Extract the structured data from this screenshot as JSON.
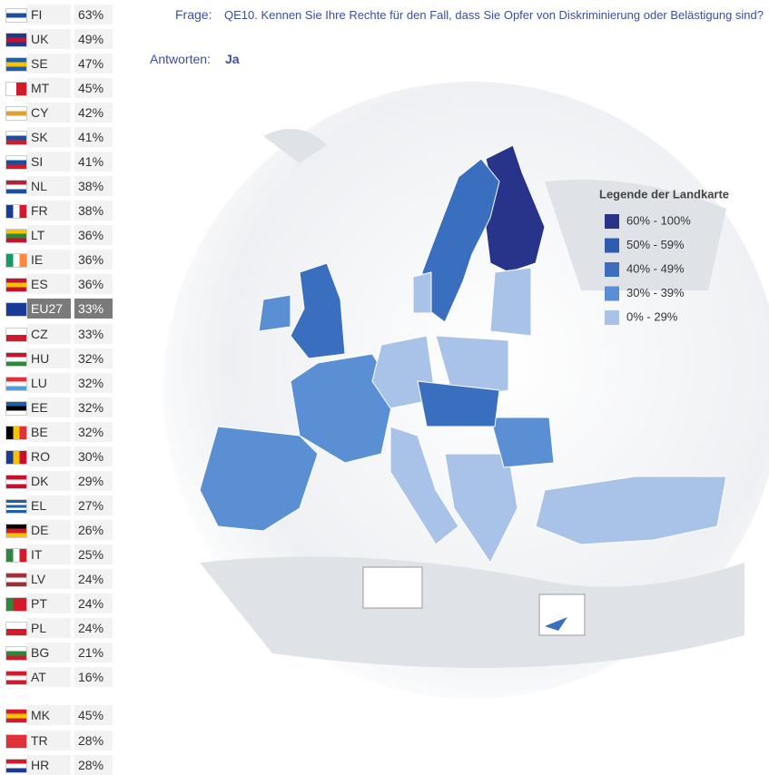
{
  "question": {
    "label": "Frage:",
    "text": "QE10. Kennen Sie Ihre Rechte für den Fall, dass Sie Opfer von Diskriminierung oder Belästigung sind?"
  },
  "answer": {
    "label": "Antworten:",
    "text": "Ja"
  },
  "rows": [
    {
      "code": "FI",
      "pct": "63%",
      "flag": [
        "h",
        "#fff",
        "#1a4fa0",
        "#fff"
      ]
    },
    {
      "code": "UK",
      "pct": "49%",
      "flag": [
        "h",
        "#1a3a8a",
        "#c8102e",
        "#1a3a8a"
      ]
    },
    {
      "code": "SE",
      "pct": "47%",
      "flag": [
        "h",
        "#1f5fa8",
        "#f5c400",
        "#1f5fa8"
      ]
    },
    {
      "code": "MT",
      "pct": "45%",
      "flag": [
        "v",
        "#fff",
        "#d21a2a"
      ]
    },
    {
      "code": "CY",
      "pct": "42%",
      "flag": [
        "h",
        "#fff",
        "#e0a030",
        "#fff"
      ]
    },
    {
      "code": "SK",
      "pct": "41%",
      "flag": [
        "h",
        "#fff",
        "#1a4fa0",
        "#d21a2a"
      ]
    },
    {
      "code": "SI",
      "pct": "41%",
      "flag": [
        "h",
        "#fff",
        "#1a4fa0",
        "#d21a2a"
      ]
    },
    {
      "code": "NL",
      "pct": "38%",
      "flag": [
        "h",
        "#b22234",
        "#fff",
        "#1a4fa0"
      ]
    },
    {
      "code": "FR",
      "pct": "38%",
      "flag": [
        "v",
        "#1a3a9a",
        "#fff",
        "#d21a2a"
      ]
    },
    {
      "code": "LT",
      "pct": "36%",
      "flag": [
        "h",
        "#f5c400",
        "#2a8a3a",
        "#c8102e"
      ]
    },
    {
      "code": "IE",
      "pct": "36%",
      "flag": [
        "v",
        "#169b62",
        "#fff",
        "#ff883e"
      ]
    },
    {
      "code": "ES",
      "pct": "36%",
      "flag": [
        "h",
        "#c8102e",
        "#f5c400",
        "#c8102e"
      ]
    },
    {
      "code": "EU27",
      "pct": "33%",
      "flag": [
        "h",
        "#1a3a9a"
      ]
    },
    {
      "code": "CZ",
      "pct": "33%",
      "flag": [
        "h",
        "#fff",
        "#d21a2a"
      ]
    },
    {
      "code": "HU",
      "pct": "32%",
      "flag": [
        "h",
        "#c8102e",
        "#fff",
        "#2a8a3a"
      ]
    },
    {
      "code": "LU",
      "pct": "32%",
      "flag": [
        "h",
        "#e0303a",
        "#fff",
        "#4aa0e0"
      ]
    },
    {
      "code": "EE",
      "pct": "32%",
      "flag": [
        "h",
        "#1f5fa8",
        "#000",
        "#fff"
      ]
    },
    {
      "code": "BE",
      "pct": "32%",
      "flag": [
        "v",
        "#000",
        "#f5c400",
        "#e0303a"
      ]
    },
    {
      "code": "RO",
      "pct": "30%",
      "flag": [
        "v",
        "#1a3a9a",
        "#f5c400",
        "#c8102e"
      ]
    },
    {
      "code": "DK",
      "pct": "29%",
      "flag": [
        "h",
        "#c8102e",
        "#fff",
        "#c8102e"
      ]
    },
    {
      "code": "EL",
      "pct": "27%",
      "flag": [
        "h",
        "#1f5fa8",
        "#fff",
        "#1f5fa8",
        "#fff",
        "#1f5fa8"
      ]
    },
    {
      "code": "DE",
      "pct": "26%",
      "flag": [
        "h",
        "#000",
        "#d21a2a",
        "#f5c400"
      ]
    },
    {
      "code": "IT",
      "pct": "25%",
      "flag": [
        "v",
        "#2a8a3a",
        "#fff",
        "#d21a2a"
      ]
    },
    {
      "code": "LV",
      "pct": "24%",
      "flag": [
        "h",
        "#9e3039",
        "#fff",
        "#9e3039"
      ]
    },
    {
      "code": "PT",
      "pct": "24%",
      "flag": [
        "v",
        "#2a8a3a",
        "#d21a2a",
        "#d21a2a"
      ]
    },
    {
      "code": "PL",
      "pct": "24%",
      "flag": [
        "h",
        "#fff",
        "#d21a2a"
      ]
    },
    {
      "code": "BG",
      "pct": "21%",
      "flag": [
        "h",
        "#fff",
        "#2a8a3a",
        "#d21a2a"
      ]
    },
    {
      "code": "AT",
      "pct": "16%",
      "flag": [
        "h",
        "#d21a2a",
        "#fff",
        "#d21a2a"
      ]
    }
  ],
  "candidate_rows": [
    {
      "code": "MK",
      "pct": "45%",
      "flag": [
        "h",
        "#d21a2a",
        "#f5c400",
        "#d21a2a"
      ]
    },
    {
      "code": "TR",
      "pct": "28%",
      "flag": [
        "h",
        "#e0303a"
      ]
    },
    {
      "code": "HR",
      "pct": "28%",
      "flag": [
        "h",
        "#d21a2a",
        "#fff",
        "#1a3a9a"
      ]
    }
  ],
  "highlight": "EU27",
  "legend": {
    "title": "Legende der Landkarte",
    "items": [
      {
        "label": "60% - 100%",
        "color": "#28348a"
      },
      {
        "label": "50% - 59%",
        "color": "#2f5cae"
      },
      {
        "label": "40% - 49%",
        "color": "#3a6fbf"
      },
      {
        "label": "30% - 39%",
        "color": "#5b8fd4"
      },
      {
        "label": "0% - 29%",
        "color": "#a9c2e8"
      }
    ]
  }
}
